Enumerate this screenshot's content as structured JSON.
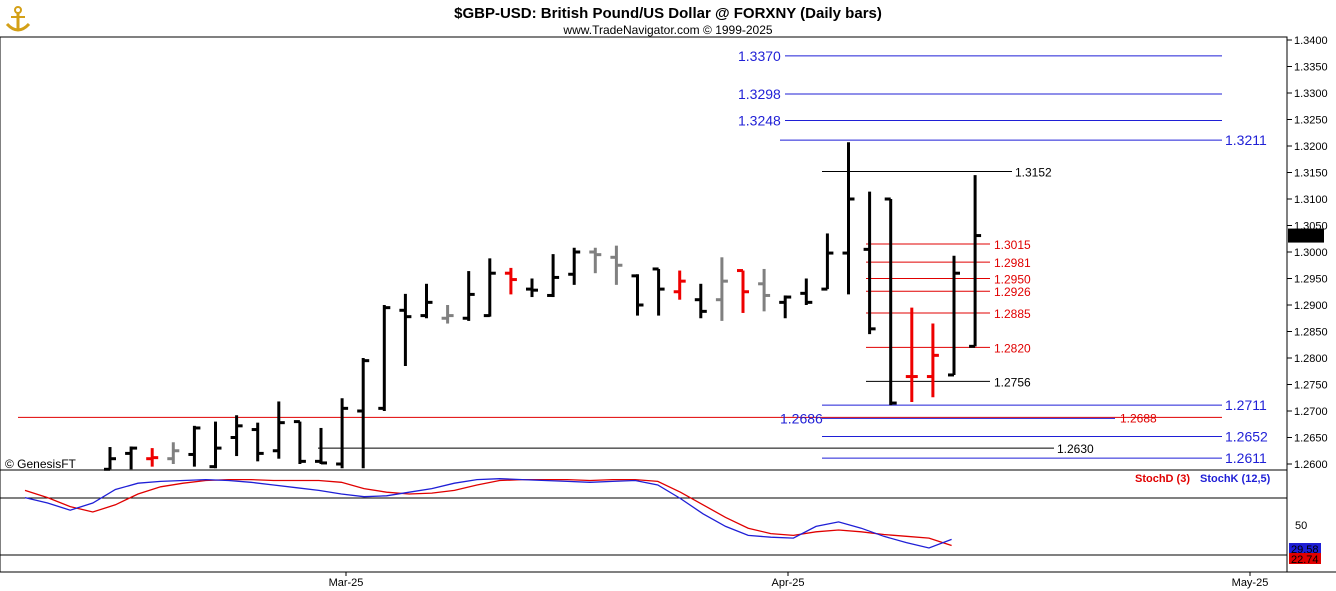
{
  "title": "$GBP-USD:  British Pound/US Dollar @ FORXNY  (Daily bars)",
  "subtitle": "www.TradeNavigator.com © 1999-2025",
  "watermark": "© GenesisFT",
  "logo_icon": "anchor-logo-icon",
  "colors": {
    "up_bar": "#000000",
    "neutral_bar": "#808080",
    "key_bar": "#ee0000",
    "blue_level": "#1f1fd6",
    "red_level": "#e00000",
    "black_level": "#000000",
    "stoch_d": "#e00000",
    "stoch_k": "#1f1fd6"
  },
  "chart_data": {
    "type": "ohlc",
    "price_axis": {
      "ylim": [
        1.258,
        1.341
      ],
      "ticks": [
        "1.2600",
        "1.2650",
        "1.2700",
        "1.2750",
        "1.2800",
        "1.2850",
        "1.2900",
        "1.2950",
        "1.3000",
        "1.3050",
        "1.3100",
        "1.3150",
        "1.3200",
        "1.3250",
        "1.3300",
        "1.3350",
        "1.3400"
      ],
      "last_price": "1.3031"
    },
    "date_labels": [
      "Mar-25",
      "Apr-25",
      "May-25"
    ],
    "bars": [
      {
        "x": 0,
        "o": 1.259,
        "h": 1.2632,
        "l": 1.259,
        "c": 1.261,
        "color": "black"
      },
      {
        "x": 1,
        "o": 1.262,
        "h": 1.2633,
        "l": 1.259,
        "c": 1.263,
        "color": "black"
      },
      {
        "x": 2,
        "o": 1.261,
        "h": 1.263,
        "l": 1.2595,
        "c": 1.2612,
        "color": "red"
      },
      {
        "x": 3,
        "o": 1.261,
        "h": 1.2641,
        "l": 1.26,
        "c": 1.2625,
        "color": "gray"
      },
      {
        "x": 4,
        "o": 1.2618,
        "h": 1.2672,
        "l": 1.2595,
        "c": 1.2668,
        "color": "black"
      },
      {
        "x": 5,
        "o": 1.2595,
        "h": 1.268,
        "l": 1.2592,
        "c": 1.263,
        "color": "black"
      },
      {
        "x": 6,
        "o": 1.265,
        "h": 1.2692,
        "l": 1.2615,
        "c": 1.2672,
        "color": "black"
      },
      {
        "x": 7,
        "o": 1.2665,
        "h": 1.2678,
        "l": 1.2605,
        "c": 1.262,
        "color": "black"
      },
      {
        "x": 8,
        "o": 1.2625,
        "h": 1.2718,
        "l": 1.261,
        "c": 1.2678,
        "color": "black"
      },
      {
        "x": 9,
        "o": 1.268,
        "h": 1.268,
        "l": 1.26,
        "c": 1.2605,
        "color": "black"
      },
      {
        "x": 10,
        "o": 1.2605,
        "h": 1.2668,
        "l": 1.26,
        "c": 1.2602,
        "color": "black"
      },
      {
        "x": 11,
        "o": 1.26,
        "h": 1.2724,
        "l": 1.2592,
        "c": 1.2705,
        "color": "black"
      },
      {
        "x": 12,
        "o": 1.27,
        "h": 1.28,
        "l": 1.2592,
        "c": 1.2795,
        "color": "black"
      },
      {
        "x": 13,
        "o": 1.2705,
        "h": 1.29,
        "l": 1.27,
        "c": 1.2895,
        "color": "black"
      },
      {
        "x": 14,
        "o": 1.289,
        "h": 1.2921,
        "l": 1.2785,
        "c": 1.2878,
        "color": "black"
      },
      {
        "x": 15,
        "o": 1.288,
        "h": 1.294,
        "l": 1.2875,
        "c": 1.2905,
        "color": "black"
      },
      {
        "x": 16,
        "o": 1.2875,
        "h": 1.29,
        "l": 1.2865,
        "c": 1.288,
        "color": "gray"
      },
      {
        "x": 17,
        "o": 1.2875,
        "h": 1.2964,
        "l": 1.287,
        "c": 1.292,
        "color": "black"
      },
      {
        "x": 18,
        "o": 1.288,
        "h": 1.2988,
        "l": 1.2878,
        "c": 1.296,
        "color": "black"
      },
      {
        "x": 19,
        "o": 1.296,
        "h": 1.297,
        "l": 1.292,
        "c": 1.2948,
        "color": "red"
      },
      {
        "x": 20,
        "o": 1.293,
        "h": 1.295,
        "l": 1.2915,
        "c": 1.2928,
        "color": "black"
      },
      {
        "x": 21,
        "o": 1.2918,
        "h": 1.2996,
        "l": 1.2915,
        "c": 1.2952,
        "color": "black"
      },
      {
        "x": 22,
        "o": 1.2958,
        "h": 1.3008,
        "l": 1.2938,
        "c": 1.3,
        "color": "black"
      },
      {
        "x": 23,
        "o": 1.3,
        "h": 1.3008,
        "l": 1.296,
        "c": 1.2995,
        "color": "gray"
      },
      {
        "x": 24,
        "o": 1.299,
        "h": 1.3012,
        "l": 1.2938,
        "c": 1.2975,
        "color": "gray"
      },
      {
        "x": 25,
        "o": 1.2955,
        "h": 1.2958,
        "l": 1.288,
        "c": 1.29,
        "color": "black"
      },
      {
        "x": 26,
        "o": 1.2968,
        "h": 1.2968,
        "l": 1.288,
        "c": 1.293,
        "color": "black"
      },
      {
        "x": 27,
        "o": 1.2925,
        "h": 1.2965,
        "l": 1.291,
        "c": 1.2945,
        "color": "red"
      },
      {
        "x": 28,
        "o": 1.291,
        "h": 1.294,
        "l": 1.2875,
        "c": 1.2888,
        "color": "black"
      },
      {
        "x": 29,
        "o": 1.291,
        "h": 1.299,
        "l": 1.287,
        "c": 1.2945,
        "color": "gray"
      },
      {
        "x": 30,
        "o": 1.2965,
        "h": 1.2965,
        "l": 1.2885,
        "c": 1.2925,
        "color": "red"
      },
      {
        "x": 31,
        "o": 1.294,
        "h": 1.2968,
        "l": 1.2888,
        "c": 1.2918,
        "color": "gray"
      },
      {
        "x": 32,
        "o": 1.2905,
        "h": 1.2918,
        "l": 1.2875,
        "c": 1.2915,
        "color": "black"
      },
      {
        "x": 33,
        "o": 1.2922,
        "h": 1.295,
        "l": 1.29,
        "c": 1.2905,
        "color": "black"
      },
      {
        "x": 34,
        "o": 1.293,
        "h": 1.3035,
        "l": 1.293,
        "c": 1.2998,
        "color": "black"
      },
      {
        "x": 35,
        "o": 1.2998,
        "h": 1.3207,
        "l": 1.292,
        "c": 1.31,
        "color": "black"
      },
      {
        "x": 36,
        "o": 1.3005,
        "h": 1.3114,
        "l": 1.2845,
        "c": 1.2855,
        "color": "black"
      },
      {
        "x": 37,
        "o": 1.31,
        "h": 1.31,
        "l": 1.2711,
        "c": 1.2715,
        "color": "black"
      },
      {
        "x": 38,
        "o": 1.2765,
        "h": 1.2895,
        "l": 1.2717,
        "c": 1.2765,
        "color": "red"
      },
      {
        "x": 39,
        "o": 1.2765,
        "h": 1.2865,
        "l": 1.2726,
        "c": 1.2805,
        "color": "red"
      },
      {
        "x": 40,
        "o": 1.2768,
        "h": 1.2993,
        "l": 1.2768,
        "c": 1.296,
        "color": "black"
      },
      {
        "x": 41,
        "o": 1.2822,
        "h": 1.3145,
        "l": 1.2822,
        "c": 1.3031,
        "color": "black"
      }
    ],
    "levels": [
      {
        "label": "1.3370",
        "value": 1.337,
        "color": "blue",
        "label_side": "left"
      },
      {
        "label": "1.3298",
        "value": 1.3298,
        "color": "blue",
        "label_side": "left"
      },
      {
        "label": "1.3248",
        "value": 1.3248,
        "color": "blue",
        "label_side": "left"
      },
      {
        "label": "1.3211",
        "value": 1.3211,
        "color": "blue",
        "label_side": "right"
      },
      {
        "label": "1.3152",
        "value": 1.3152,
        "color": "black",
        "label_side": "right"
      },
      {
        "label": "1.3015",
        "value": 1.3015,
        "color": "red",
        "label_side": "right"
      },
      {
        "label": "1.2981",
        "value": 1.2981,
        "color": "red",
        "label_side": "right"
      },
      {
        "label": "1.2950",
        "value": 1.295,
        "color": "red",
        "label_side": "right"
      },
      {
        "label": "1.2926",
        "value": 1.2926,
        "color": "red",
        "label_side": "right"
      },
      {
        "label": "1.2885",
        "value": 1.2885,
        "color": "red",
        "label_side": "right"
      },
      {
        "label": "1.2820",
        "value": 1.282,
        "color": "red",
        "label_side": "right"
      },
      {
        "label": "1.2756",
        "value": 1.2756,
        "color": "black",
        "label_side": "right"
      },
      {
        "label": "1.2711",
        "value": 1.2711,
        "color": "blue",
        "label_side": "right"
      },
      {
        "label": "1.2688",
        "value": 1.2688,
        "color": "red",
        "label_side": "right"
      },
      {
        "label": "1.2686",
        "value": 1.2686,
        "color": "blue",
        "label_side": "left"
      },
      {
        "label": "1.2652",
        "value": 1.2652,
        "color": "blue",
        "label_side": "right"
      },
      {
        "label": "1.2630",
        "value": 1.263,
        "color": "black",
        "label_side": "right"
      },
      {
        "label": "1.2611",
        "value": 1.2611,
        "color": "blue",
        "label_side": "right"
      }
    ],
    "stochastic": {
      "legend_d": "StochD (3)",
      "legend_k": "StochK (12,5)",
      "axis_tick": "50",
      "ylim": [
        0,
        100
      ],
      "d_value": "22.74",
      "k_value": "29.58",
      "x": [
        0,
        1,
        2,
        3,
        4,
        5,
        6,
        7,
        8,
        9,
        10,
        11,
        12,
        13,
        14,
        15,
        16,
        17,
        18,
        19,
        20,
        21,
        22,
        23,
        24,
        25,
        26,
        27,
        28,
        29,
        30,
        31,
        32,
        33,
        34,
        35,
        36,
        37,
        38,
        39,
        40,
        41
      ],
      "stoch_d": [
        84,
        76,
        66,
        60,
        68,
        80,
        88,
        92,
        95,
        96,
        96,
        95,
        95,
        95,
        93,
        86,
        82,
        80,
        81,
        84,
        90,
        95,
        96,
        96,
        96,
        95,
        96,
        96,
        94,
        82,
        68,
        54,
        42,
        36,
        34,
        38,
        40,
        38,
        35,
        33,
        31,
        22.74
      ],
      "stoch_k": [
        76,
        70,
        62,
        70,
        85,
        92,
        94,
        95,
        96,
        95,
        93,
        90,
        87,
        84,
        80,
        77,
        78,
        82,
        86,
        92,
        96,
        97,
        96,
        95,
        94,
        93,
        94,
        95,
        90,
        75,
        58,
        44,
        34,
        32,
        31,
        44,
        49,
        42,
        33,
        26,
        20,
        29.58
      ]
    }
  }
}
